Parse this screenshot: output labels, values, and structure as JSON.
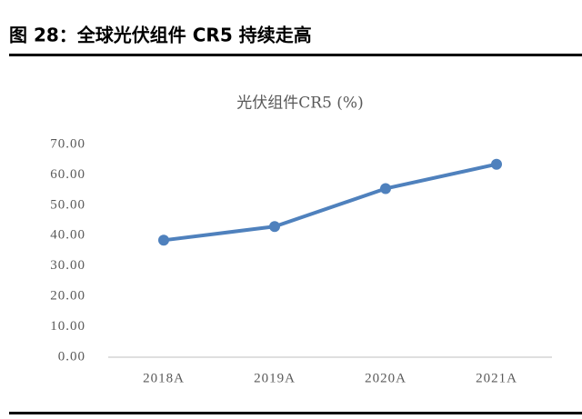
{
  "caption": "图 28：全球光伏组件 CR5 持续走高",
  "chart_data": {
    "type": "line",
    "title": "光伏组件CR5 (%)",
    "categories": [
      "2018A",
      "2019A",
      "2020A",
      "2021A"
    ],
    "series": [
      {
        "name": "光伏组件CR5",
        "color": "#4f81bd",
        "values": [
          38.5,
          43,
          55.5,
          63.5
        ]
      }
    ],
    "ylim": [
      0,
      70
    ],
    "yticks": [
      {
        "value": 0,
        "label": "0.00"
      },
      {
        "value": 10,
        "label": "10.00"
      },
      {
        "value": 20,
        "label": "20.00"
      },
      {
        "value": 30,
        "label": "30.00"
      },
      {
        "value": 40,
        "label": "40.00"
      },
      {
        "value": 50,
        "label": "50.00"
      },
      {
        "value": 60,
        "label": "60.00"
      },
      {
        "value": 70,
        "label": "70.00"
      }
    ],
    "grid": false
  }
}
